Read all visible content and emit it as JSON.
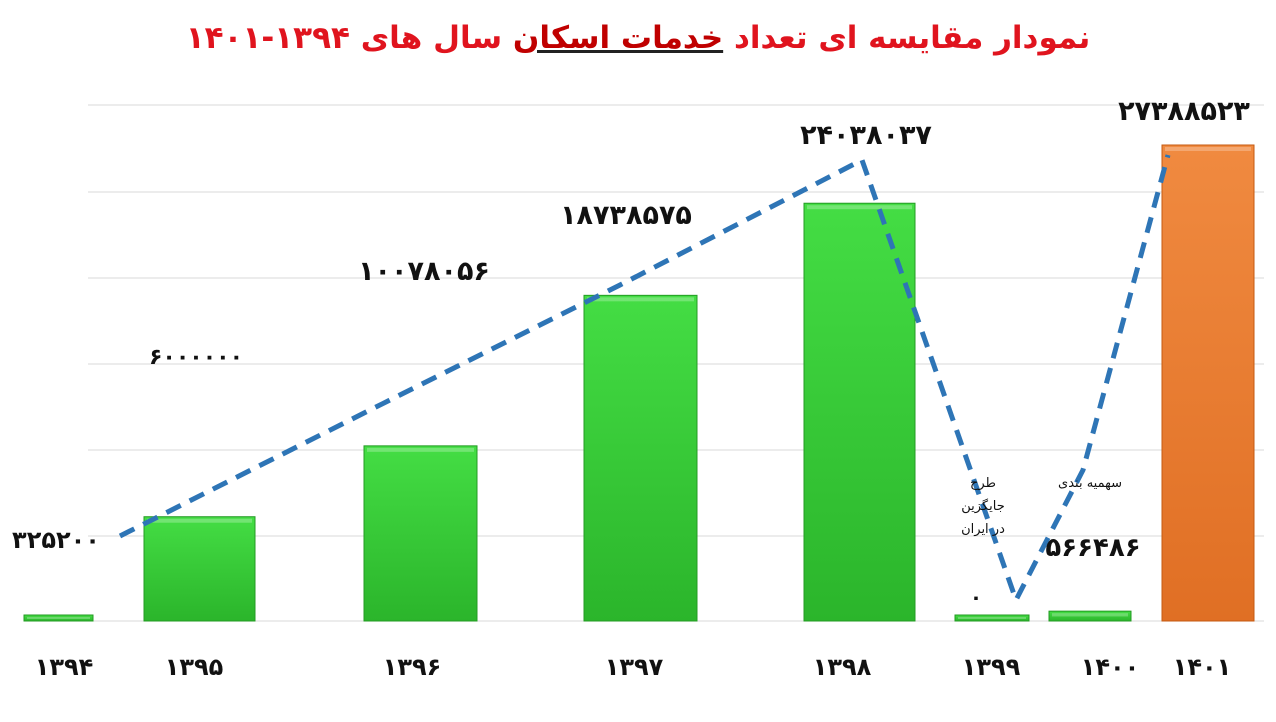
{
  "title": {
    "before": "نمودار مقایسه ای تعداد ",
    "highlight": "خدمات اسکان",
    "after": " سال های ۱۳۹۴-۱۴۰۱"
  },
  "colors": {
    "bar": "#33cc33",
    "bar_last": "#ed7d31",
    "trend": "#2e75b6",
    "grid": "#d9d9d9"
  },
  "chart_data": {
    "type": "bar",
    "categories": [
      "۱۳۹۴",
      "۱۳۹۵",
      "۱۳۹۶",
      "۱۳۹۷",
      "۱۳۹۸",
      "۱۳۹۹",
      "۱۴۰۰",
      "۱۴۰۱"
    ],
    "values": [
      325200,
      6000000,
      10078056,
      18738575,
      24038037,
      0,
      566486,
      27388523
    ],
    "data_labels": [
      "۳۲۵۲۰۰",
      "۶۰۰۰۰۰۰",
      "۱۰۰۷۸۰۵۶",
      "۱۸۷۳۸۵۷۵",
      "۲۴۰۳۸۰۳۷",
      "۰",
      "۵۶۶۴۸۶",
      "۲۷۳۸۸۵۲۳"
    ],
    "annotations": [
      {
        "category_index": 5,
        "text": [
          "طرح",
          "جایگزین",
          "در ایران"
        ]
      },
      {
        "category_index": 6,
        "text": [
          "سهمیه بندی"
        ]
      }
    ],
    "trend_line": {
      "style": "dashed",
      "series": "values"
    },
    "grid": true,
    "legend": "none",
    "xlabel": "",
    "ylabel": ""
  }
}
